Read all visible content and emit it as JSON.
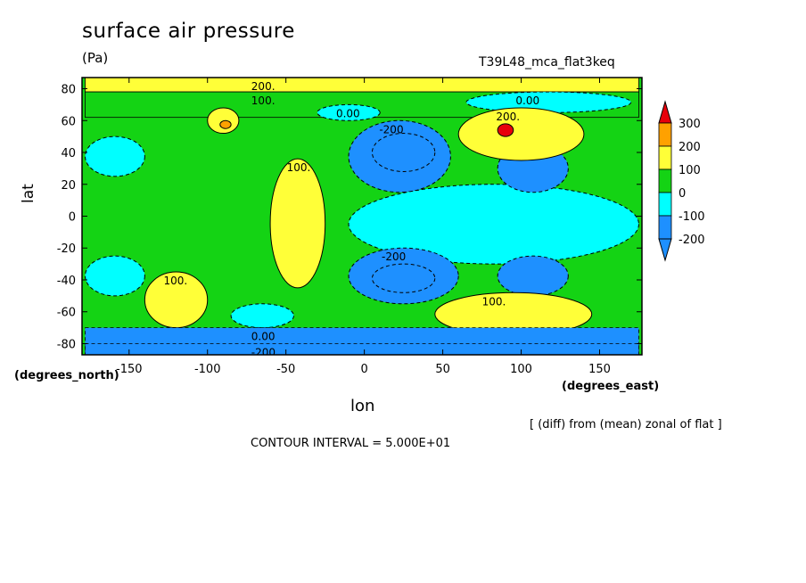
{
  "chart_data": {
    "type": "heatmap",
    "title": "surface air pressure",
    "units": "(Pa)",
    "run_id": "T39L48_mca_flat3keq",
    "xlabel": "lon",
    "ylabel": "lat",
    "x_unit_note": "(degrees_east)",
    "y_unit_note": "(degrees_north)",
    "note": "[ (diff) from (mean) zonal of flat ]",
    "contour_interval_text": "CONTOUR INTERVAL = 5.000E+01",
    "xlim": [
      -180,
      177
    ],
    "ylim": [
      -87,
      87
    ],
    "x_ticks": [
      -150,
      -100,
      -50,
      0,
      50,
      100,
      150
    ],
    "y_ticks": [
      80,
      60,
      40,
      20,
      0,
      -20,
      -40,
      -60,
      -80
    ],
    "colorbar": {
      "levels": [
        300,
        200,
        100,
        0,
        -100,
        -200
      ],
      "colors": [
        "#e8000b",
        "#ffa100",
        "#ffff38",
        "#14d314",
        "#00ffff",
        "#1e90ff"
      ],
      "extend": "both"
    },
    "regions": [
      {
        "value": 120,
        "lon": [
          -178,
          175
        ],
        "lat": [
          78,
          87
        ],
        "label": "200."
      },
      {
        "value": 60,
        "lon": [
          -178,
          175
        ],
        "lat": [
          62,
          78
        ],
        "label": "100."
      },
      {
        "value": 120,
        "lon": [
          -100,
          -80
        ],
        "lat": [
          52,
          68
        ]
      },
      {
        "value": 200,
        "lon": [
          -92,
          -85
        ],
        "lat": [
          55,
          60
        ]
      },
      {
        "value": -60,
        "lon": [
          -30,
          10
        ],
        "lat": [
          60,
          70
        ],
        "label": "0.00"
      },
      {
        "value": -60,
        "lon": [
          65,
          170
        ],
        "lat": [
          65,
          78
        ],
        "label": "0.00"
      },
      {
        "value": -60,
        "lon": [
          -178,
          -140
        ],
        "lat": [
          25,
          50
        ]
      },
      {
        "value": 130,
        "lon": [
          -60,
          -25
        ],
        "lat": [
          -45,
          36
        ],
        "label": "100."
      },
      {
        "value": -170,
        "lon": [
          -10,
          55
        ],
        "lat": [
          15,
          60
        ],
        "label": "-200"
      },
      {
        "value": -260,
        "lon": [
          5,
          45
        ],
        "lat": [
          28,
          52
        ]
      },
      {
        "value": -60,
        "lon": [
          -10,
          175
        ],
        "lat": [
          -30,
          20
        ]
      },
      {
        "value": -130,
        "lon": [
          85,
          130
        ],
        "lat": [
          15,
          45
        ],
        "label": "0.00"
      },
      {
        "value": -170,
        "lon": [
          -10,
          60
        ],
        "lat": [
          -55,
          -20
        ],
        "label": "-200"
      },
      {
        "value": -260,
        "lon": [
          5,
          45
        ],
        "lat": [
          -48,
          -30
        ]
      },
      {
        "value": -130,
        "lon": [
          85,
          130
        ],
        "lat": [
          -50,
          -25
        ]
      },
      {
        "value": 190,
        "lon": [
          60,
          140
        ],
        "lat": [
          35,
          68
        ],
        "label": "200."
      },
      {
        "value": 310,
        "lon": [
          85,
          95
        ],
        "lat": [
          50,
          58
        ]
      },
      {
        "value": 190,
        "lon": [
          45,
          145
        ],
        "lat": [
          -75,
          -48
        ],
        "label": "100."
      },
      {
        "value": 140,
        "lon": [
          -140,
          -100
        ],
        "lat": [
          -70,
          -35
        ],
        "label": "100."
      },
      {
        "value": -60,
        "lon": [
          -178,
          -140
        ],
        "lat": [
          -50,
          -25
        ]
      },
      {
        "value": -60,
        "lon": [
          -85,
          -45
        ],
        "lat": [
          -70,
          -55
        ]
      },
      {
        "value": -110,
        "lon": [
          -178,
          175
        ],
        "lat": [
          -87,
          -70
        ],
        "label": "0.00"
      },
      {
        "value": -210,
        "lon": [
          -178,
          175
        ],
        "lat": [
          -87,
          -80
        ],
        "label": "-200."
      }
    ]
  }
}
